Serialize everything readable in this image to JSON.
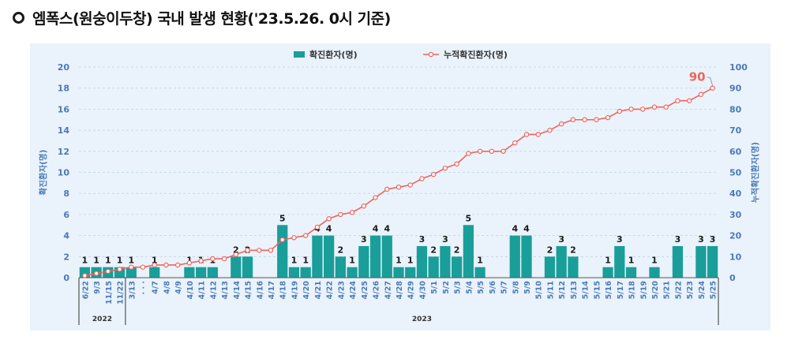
{
  "heading": {
    "text": "엠폭스(원숭이두창) 국내 발생 현황('23.5.26. 0시 기준)"
  },
  "colors": {
    "bar": "#1a9e9a",
    "line": "#f0645c",
    "axis_text": "#4a7ab8",
    "panel": "#eaf3fb"
  },
  "chart_data": {
    "type": "bar",
    "categories": [
      "6/22",
      "9/3",
      "11/15",
      "11/22",
      "3/13",
      "· · ·",
      "4/7",
      "4/8",
      "4/9",
      "4/10",
      "4/11",
      "4/12",
      "4/13",
      "4/14",
      "4/15",
      "4/16",
      "4/17",
      "4/18",
      "4/19",
      "4/20",
      "4/21",
      "4/22",
      "4/23",
      "4/24",
      "4/25",
      "4/26",
      "4/27",
      "4/28",
      "4/29",
      "4/30",
      "5/1",
      "5/2",
      "5/3",
      "5/4",
      "5/5",
      "5/6",
      "5/7",
      "5/8",
      "5/9",
      "5/10",
      "5/11",
      "5/12",
      "5/13",
      "5/14",
      "5/15",
      "5/16",
      "5/17",
      "5/18",
      "5/19",
      "5/20",
      "5/21",
      "5/22",
      "5/23",
      "5/24",
      "5/25"
    ],
    "year_groups": [
      {
        "label": "2022"
      },
      {
        "label": "2023"
      }
    ],
    "series": [
      {
        "name": "확진환자(명)",
        "type": "bar",
        "axis": "left",
        "values": [
          1,
          1,
          1,
          1,
          1,
          0,
          1,
          0,
          0,
          1,
          1,
          1,
          0,
          2,
          2,
          0,
          0,
          5,
          1,
          1,
          4,
          4,
          2,
          1,
          3,
          4,
          4,
          1,
          1,
          3,
          2,
          3,
          2,
          5,
          1,
          0,
          0,
          4,
          4,
          0,
          2,
          3,
          2,
          0,
          0,
          1,
          3,
          1,
          0,
          1,
          0,
          3,
          0,
          3,
          3
        ]
      },
      {
        "name": "누적확진환자(명)",
        "type": "line",
        "axis": "right",
        "values": [
          1,
          2,
          3,
          4,
          5,
          5,
          6,
          6,
          6,
          7,
          8,
          9,
          9,
          11,
          13,
          13,
          13,
          18,
          19,
          20,
          24,
          28,
          30,
          31,
          34,
          38,
          42,
          43,
          44,
          47,
          49,
          52,
          54,
          59,
          60,
          60,
          60,
          64,
          68,
          68,
          70,
          73,
          75,
          75,
          75,
          76,
          79,
          80,
          80,
          81,
          81,
          84,
          84,
          87,
          90
        ]
      }
    ],
    "bar_labels": [
      "1",
      "1",
      "1",
      "1",
      "1",
      "",
      "1",
      "",
      "",
      "1",
      "1",
      "1",
      "",
      "2",
      "2",
      "",
      "",
      "5",
      "1",
      "1",
      "4",
      "4",
      "2",
      "1",
      "3",
      "4",
      "4",
      "1",
      "1",
      "3",
      "2",
      "3",
      "2",
      "5",
      "1",
      "",
      "",
      "4",
      "4",
      "",
      "2",
      "3",
      "2",
      "",
      "",
      "1",
      "3",
      "1",
      "",
      "1",
      "",
      "3",
      "",
      "3",
      "3"
    ],
    "final_label": "90",
    "ylabel": "확진환자(명)",
    "y2label": "누적확진환자(명)",
    "ylim": [
      0,
      20
    ],
    "y2lim": [
      0,
      100
    ],
    "yticks": [
      0,
      2,
      4,
      6,
      8,
      10,
      12,
      14,
      16,
      18,
      20
    ],
    "y2ticks": [
      0,
      10,
      20,
      30,
      40,
      50,
      60,
      70,
      80,
      90,
      100
    ],
    "grid": true,
    "legend_position": "top-center"
  }
}
